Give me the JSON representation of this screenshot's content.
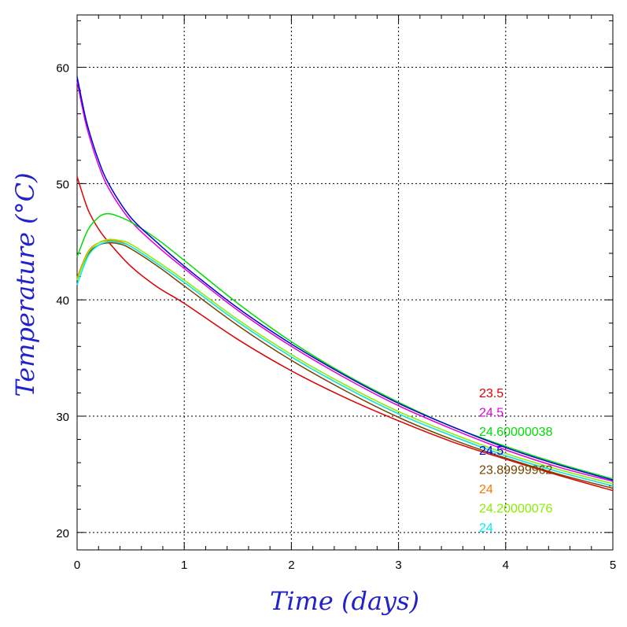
{
  "chart_data": {
    "type": "line",
    "xlabel": "Time (days)",
    "ylabel": "Temperature (°C)",
    "xlim": [
      0,
      5
    ],
    "ylim": [
      18.5,
      64.5
    ],
    "xticks": [
      0,
      1,
      2,
      3,
      4,
      5
    ],
    "yticks": [
      20,
      30,
      40,
      50,
      60
    ],
    "grid": true,
    "legend_position": "lower-right",
    "series": [
      {
        "name": "23.5",
        "color": "#dd0000",
        "x": [
          0,
          0.1,
          0.2,
          0.3,
          0.5,
          0.75,
          1.0,
          1.5,
          2.0,
          2.5,
          3.0,
          3.5,
          4.0,
          4.5,
          5.0
        ],
        "y": [
          50.6,
          47.8,
          46.1,
          44.9,
          42.9,
          41.1,
          39.7,
          36.6,
          33.9,
          31.6,
          29.6,
          27.8,
          26.3,
          24.9,
          23.6
        ]
      },
      {
        "name": "24.5",
        "color": "#dd00dd",
        "x": [
          0,
          0.05,
          0.1,
          0.2,
          0.3,
          0.5,
          0.75,
          1.0,
          1.5,
          2.0,
          2.5,
          3.0,
          3.5,
          4.0,
          4.5,
          5.0
        ],
        "y": [
          58.8,
          56.5,
          54.5,
          51.6,
          49.5,
          46.8,
          44.6,
          42.7,
          39.1,
          36.0,
          33.3,
          30.9,
          28.9,
          27.1,
          25.6,
          24.4
        ]
      },
      {
        "name": "24.60000038",
        "color": "#00dd00",
        "x": [
          0,
          0.1,
          0.2,
          0.27,
          0.35,
          0.5,
          0.75,
          1.0,
          1.5,
          2.0,
          2.5,
          3.0,
          3.5,
          4.0,
          4.5,
          5.0
        ],
        "y": [
          43.7,
          46.0,
          47.1,
          47.4,
          47.3,
          46.7,
          45.2,
          43.4,
          39.7,
          36.4,
          33.6,
          31.2,
          29.1,
          27.4,
          25.9,
          24.6
        ]
      },
      {
        "name": "24.5",
        "color": "#0000dd",
        "x": [
          0,
          0.05,
          0.1,
          0.2,
          0.3,
          0.5,
          0.75,
          1.0,
          1.5,
          2.0,
          2.5,
          3.0,
          3.5,
          4.0,
          4.5,
          5.0
        ],
        "y": [
          59.2,
          56.9,
          54.9,
          52.0,
          49.9,
          47.1,
          44.9,
          42.9,
          39.3,
          36.2,
          33.5,
          31.1,
          29.1,
          27.3,
          25.8,
          24.5
        ]
      },
      {
        "name": "23.89999962",
        "color": "#774400",
        "x": [
          0,
          0.1,
          0.2,
          0.3,
          0.4,
          0.5,
          0.75,
          1.0,
          1.5,
          2.0,
          2.5,
          3.0,
          3.5,
          4.0,
          4.5,
          5.0
        ],
        "y": [
          41.8,
          43.9,
          44.7,
          44.9,
          44.8,
          44.4,
          42.9,
          41.2,
          37.8,
          34.8,
          32.2,
          29.9,
          28.0,
          26.4,
          25.0,
          23.8
        ]
      },
      {
        "name": "24",
        "color": "#ff7700",
        "x": [
          0,
          0.1,
          0.2,
          0.3,
          0.4,
          0.5,
          0.75,
          1.0,
          1.5,
          2.0,
          2.5,
          3.0,
          3.5,
          4.0,
          4.5,
          5.0
        ],
        "y": [
          41.9,
          44.1,
          44.9,
          45.1,
          45.0,
          44.6,
          43.1,
          41.5,
          38.1,
          35.1,
          32.5,
          30.2,
          28.3,
          26.6,
          25.2,
          24.0
        ]
      },
      {
        "name": "24.20000076",
        "color": "#88ee00",
        "x": [
          0,
          0.1,
          0.2,
          0.3,
          0.4,
          0.5,
          0.75,
          1.0,
          1.5,
          2.0,
          2.5,
          3.0,
          3.5,
          4.0,
          4.5,
          5.0
        ],
        "y": [
          41.7,
          44.0,
          44.9,
          45.2,
          45.1,
          44.8,
          43.3,
          41.7,
          38.3,
          35.3,
          32.7,
          30.4,
          28.5,
          26.8,
          25.4,
          24.2
        ]
      },
      {
        "name": "24",
        "color": "#00eeee",
        "x": [
          0,
          0.1,
          0.2,
          0.3,
          0.4,
          0.5,
          0.75,
          1.0,
          1.5,
          2.0,
          2.5,
          3.0,
          3.5,
          4.0,
          4.5,
          5.0
        ],
        "y": [
          41.3,
          43.7,
          44.7,
          45.0,
          44.9,
          44.6,
          43.1,
          41.5,
          38.1,
          35.1,
          32.5,
          30.2,
          28.3,
          26.6,
          25.2,
          24.0
        ]
      }
    ]
  }
}
